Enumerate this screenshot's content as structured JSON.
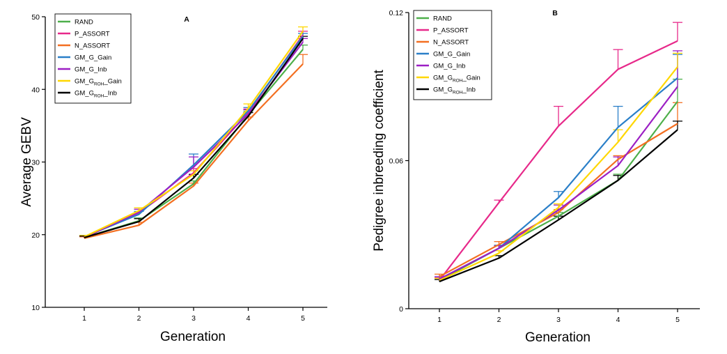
{
  "chart_data": [
    {
      "type": "line",
      "title": "A",
      "xlabel": "Generation",
      "ylabel": "Average GEBV",
      "categories": [
        "1",
        "2",
        "3",
        "4",
        "5"
      ],
      "yticks": [
        "10",
        "20",
        "30",
        "40",
        "50"
      ],
      "ylim": [
        10,
        50
      ],
      "legend_position": "top-left",
      "series": [
        {
          "name": "RAND",
          "color": "#4daf4a",
          "values": [
            19.6,
            21.9,
            27.0,
            36.5,
            45.5
          ],
          "errors": [
            0.2,
            0.4,
            0.4,
            0.5,
            0.6
          ]
        },
        {
          "name": "P_ASSORT",
          "color": "#e7298a",
          "values": [
            19.7,
            23.0,
            28.5,
            36.8,
            47.5
          ],
          "errors": [
            0.2,
            0.5,
            0.6,
            0.5,
            0.5
          ]
        },
        {
          "name": "N_ASSORT",
          "color": "#f36f21",
          "values": [
            19.5,
            21.3,
            26.7,
            35.7,
            43.5
          ],
          "errors": [
            0.2,
            0.4,
            0.4,
            0.5,
            1.3
          ]
        },
        {
          "name": "GM_G_Gain",
          "color": "#2a7fc8",
          "values": [
            19.7,
            22.8,
            29.6,
            37.0,
            47.3
          ],
          "errors": [
            0.2,
            0.4,
            1.5,
            0.5,
            0.4
          ]
        },
        {
          "name": "GM_G_Inb",
          "color": "#9c1fc4",
          "values": [
            19.6,
            23.1,
            29.3,
            36.6,
            46.5
          ],
          "errors": [
            0.2,
            0.4,
            1.4,
            0.6,
            0.5
          ]
        },
        {
          "name": "GM_G_ROH_Gain",
          "name_parts": [
            "GM_G",
            "ROH",
            "_Gain"
          ],
          "color": "#ffd700",
          "values": [
            19.7,
            23.3,
            28.3,
            37.4,
            48.0
          ],
          "errors": [
            0.2,
            0.4,
            0.5,
            0.6,
            0.6
          ]
        },
        {
          "name": "GM_G_ROH_Inb",
          "name_parts": [
            "GM_G",
            "ROH",
            "_Inb"
          ],
          "color": "#000000",
          "values": [
            19.6,
            21.8,
            27.8,
            36.3,
            47.0
          ],
          "errors": [
            0.2,
            0.4,
            0.5,
            0.5,
            0.3
          ]
        }
      ]
    },
    {
      "type": "line",
      "title": "B",
      "xlabel": "Generation",
      "ylabel": "Pedigree inbreeding coefficient",
      "categories": [
        "1",
        "2",
        "3",
        "4",
        "5"
      ],
      "yticks": [
        "0",
        "0.06",
        "0.12"
      ],
      "ylim": [
        0,
        0.12
      ],
      "legend_position": "top-left",
      "series": [
        {
          "name": "RAND",
          "color": "#4daf4a",
          "values": [
            0.0115,
            0.0245,
            0.0375,
            0.052,
            0.084
          ],
          "errors": [
            0.001,
            0.0012,
            0.0015,
            0.0025,
            0.009
          ]
        },
        {
          "name": "P_ASSORT",
          "color": "#e7298a",
          "values": [
            0.0115,
            0.043,
            0.074,
            0.097,
            0.1085
          ],
          "errors": [
            0.001,
            0.001,
            0.008,
            0.008,
            0.0075
          ]
        },
        {
          "name": "N_ASSORT",
          "color": "#f36f21",
          "values": [
            0.013,
            0.026,
            0.039,
            0.0605,
            0.075
          ],
          "errors": [
            0.001,
            0.0012,
            0.0012,
            0.0015,
            0.0085
          ]
        },
        {
          "name": "GM_G_Gain",
          "color": "#2a7fc8",
          "values": [
            0.012,
            0.0245,
            0.045,
            0.0735,
            0.0935
          ],
          "errors": [
            0.001,
            0.0012,
            0.0025,
            0.0085,
            0.0095
          ]
        },
        {
          "name": "GM_G_Inb",
          "color": "#9c1fc4",
          "values": [
            0.012,
            0.0245,
            0.04,
            0.058,
            0.09
          ],
          "errors": [
            0.001,
            0.001,
            0.002,
            0.0035,
            0.0145
          ]
        },
        {
          "name": "GM_G_ROH_Gain",
          "name_parts": [
            "GM_G",
            "ROH",
            "_Gain"
          ],
          "color": "#ffd700",
          "values": [
            0.0115,
            0.0225,
            0.041,
            0.0675,
            0.098
          ],
          "errors": [
            0.0008,
            0.001,
            0.0015,
            0.005,
            0.0055
          ]
        },
        {
          "name": "GM_G_ROH_Inb",
          "name_parts": [
            "GM_G",
            "ROH",
            "_Inb"
          ],
          "color": "#000000",
          "values": [
            0.011,
            0.0205,
            0.036,
            0.052,
            0.0725
          ],
          "errors": [
            0.0008,
            0.001,
            0.0015,
            0.002,
            0.0035
          ]
        }
      ]
    }
  ]
}
